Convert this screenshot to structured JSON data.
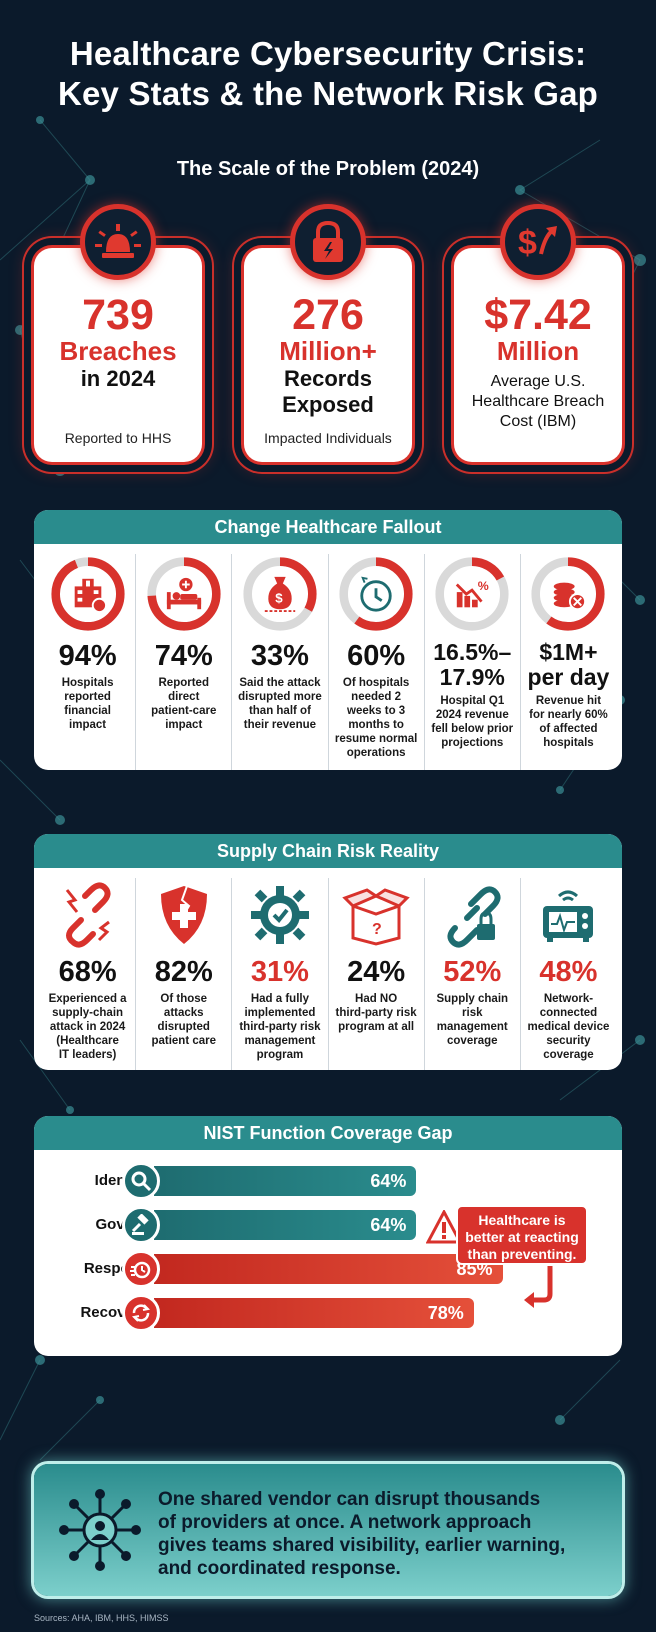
{
  "title_line1": "Healthcare Cybersecurity Crisis:",
  "title_line2": "Key Stats & the Network Risk Gap",
  "scale": {
    "heading": "The Scale of the Problem (2024)",
    "cards": [
      {
        "icon": "siren-icon",
        "big": "739",
        "red": "Breaches",
        "dark": "in 2024",
        "note": "Reported to HHS"
      },
      {
        "icon": "broken-lock-icon",
        "big": "276",
        "red": "Million+",
        "dark1": "Records",
        "dark2": "Exposed",
        "note": "Impacted Individuals"
      },
      {
        "icon": "dollar-rising-icon",
        "big": "$7.42",
        "red": "Million",
        "note_line1": "Average U.S.",
        "note_line2": "Healthcare Breach",
        "note_line3": "Cost (IBM)"
      }
    ]
  },
  "change": {
    "heading": "Change Healthcare Fallout",
    "items": [
      {
        "pct": 94,
        "stat": "94%",
        "icon": "hospital-icon",
        "d1": "Hospitals",
        "d2": "reported",
        "d3": "financial",
        "d4": "impact"
      },
      {
        "pct": 74,
        "stat": "74%",
        "icon": "patient-bed-icon",
        "d1": "Reported",
        "d2": "direct",
        "d3": "patient-care",
        "d4": "impact"
      },
      {
        "pct": 33,
        "stat": "33%",
        "icon": "money-bag-icon",
        "d1": "Said the attack",
        "d2": "disrupted more",
        "d3": "than half of",
        "d4": "their revenue"
      },
      {
        "pct": 60,
        "stat": "60%",
        "icon": "clock-icon",
        "d1": "Of hospitals",
        "d2": "needed 2",
        "d3": "weeks to 3",
        "d4": "months to",
        "d5": "resume normal",
        "d6": "operations"
      },
      {
        "pct": 17,
        "stat1": "16.5%–",
        "stat2": "17.9%",
        "icon": "declining-chart-icon",
        "d1": "Hospital Q1",
        "d2": "2024 revenue",
        "d3": "fell below prior",
        "d4": "projections"
      },
      {
        "pct": 60,
        "stat1": "$1M+",
        "stat2": "per day",
        "icon": "coins-x-icon",
        "d1": "Revenue hit",
        "d2": "for nearly 60%",
        "d3": "of affected",
        "d4": "hospitals"
      }
    ]
  },
  "supply": {
    "heading": "Supply Chain Risk Reality",
    "items": [
      {
        "stat": "68%",
        "icon": "broken-chain-icon",
        "d1": "Experienced a",
        "d2": "supply-chain",
        "d3": "attack in 2024",
        "d4": "(Healthcare",
        "d5": "IT leaders)"
      },
      {
        "stat": "82%",
        "icon": "broken-medical-shield-icon",
        "d1": "Of those",
        "d2": "attacks",
        "d3": "disrupted",
        "d4": "patient care"
      },
      {
        "stat": "31%",
        "icon": "gear-check-icon",
        "d1": "Had a fully",
        "d2": "implemented",
        "d3": "third-party risk",
        "d4": "management",
        "d5": "program"
      },
      {
        "stat": "24%",
        "icon": "mystery-box-icon",
        "d1": "Had NO",
        "d2": "third-party risk",
        "d3": "program at all"
      },
      {
        "stat": "52%",
        "icon": "chain-lock-icon",
        "d1": "Supply chain",
        "d2": "risk",
        "d3": "management",
        "d4": "coverage"
      },
      {
        "stat": "48%",
        "icon": "medical-device-icon",
        "d1": "Network-",
        "d2": "connected",
        "d3": "medical device",
        "d4": "security",
        "d5": "coverage"
      }
    ]
  },
  "nist": {
    "heading": "NIST Function Coverage Gap",
    "rows": [
      {
        "label": "Identify",
        "value": 64,
        "text": "64%",
        "icon": "magnifier-icon",
        "color": "teal"
      },
      {
        "label": "Govern",
        "value": 64,
        "text": "64%",
        "icon": "gavel-icon",
        "color": "teal"
      },
      {
        "label": "Respond",
        "value": 85,
        "text": "85%",
        "icon": "stopwatch-icon",
        "color": "red"
      },
      {
        "label": "Recovery",
        "value": 78,
        "text": "78%",
        "icon": "recovery-cycle-icon",
        "color": "red"
      }
    ],
    "callout_line1": "Healthcare is",
    "callout_line2": "better at reacting",
    "callout_line3": "than preventing."
  },
  "bottom": {
    "line1": "One shared vendor can disrupt thousands",
    "line2": "of providers at once. A network approach",
    "line3": "gives teams shared visibility, earlier warning,",
    "line4": "and coordinated response.",
    "icon": "network-person-icon"
  },
  "sources": "Sources: AHA, IBM, HHS, HIMSS",
  "colors": {
    "red": "#d8322c",
    "teal": "#2a8c8d",
    "navy": "#0b1a2b"
  }
}
